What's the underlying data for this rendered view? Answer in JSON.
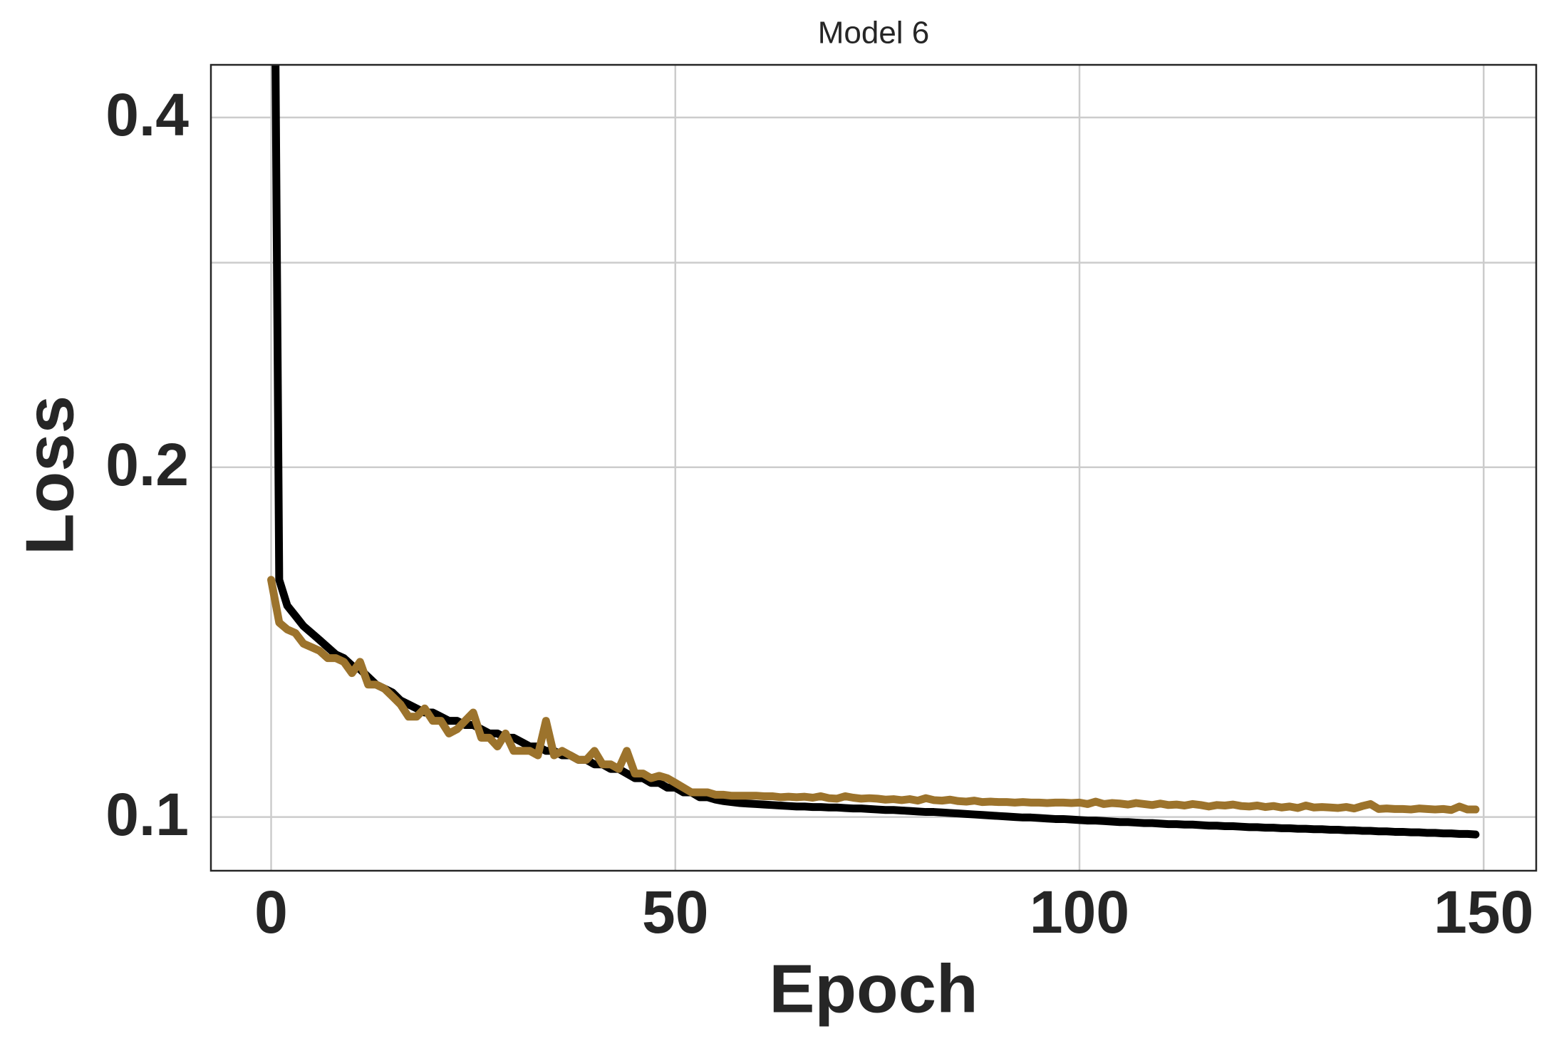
{
  "chart_data": {
    "type": "line",
    "title": "Model 6",
    "xlabel": "Epoch",
    "ylabel": "Loss",
    "yscale": "log",
    "grid": true,
    "xlim": [
      -7.45,
      156.5
    ],
    "ylim": [
      0.0899,
      0.444
    ],
    "xticks": [
      0,
      50,
      100,
      150
    ],
    "yticks": [
      0.1,
      0.2,
      0.4
    ],
    "yminorticks": [
      0.3
    ],
    "x": [
      0,
      1,
      2,
      3,
      4,
      5,
      6,
      7,
      8,
      9,
      10,
      11,
      12,
      13,
      14,
      15,
      16,
      17,
      18,
      19,
      20,
      21,
      22,
      23,
      24,
      25,
      26,
      27,
      28,
      29,
      30,
      31,
      32,
      33,
      34,
      35,
      36,
      37,
      38,
      39,
      40,
      41,
      42,
      43,
      44,
      45,
      46,
      47,
      48,
      49,
      50,
      51,
      52,
      53,
      54,
      55,
      56,
      57,
      58,
      59,
      60,
      61,
      62,
      63,
      64,
      65,
      66,
      67,
      68,
      69,
      70,
      71,
      72,
      73,
      74,
      75,
      76,
      77,
      78,
      79,
      80,
      81,
      82,
      83,
      84,
      85,
      86,
      87,
      88,
      89,
      90,
      91,
      92,
      93,
      94,
      95,
      96,
      97,
      98,
      99,
      100,
      101,
      102,
      103,
      104,
      105,
      106,
      107,
      108,
      109,
      110,
      111,
      112,
      113,
      114,
      115,
      116,
      117,
      118,
      119,
      120,
      121,
      122,
      123,
      124,
      125,
      126,
      127,
      128,
      129,
      130,
      131,
      132,
      133,
      134,
      135,
      136,
      137,
      138,
      139,
      140,
      141,
      142,
      143,
      144,
      145,
      146,
      147,
      148,
      149
    ],
    "series": [
      {
        "color": "#000000",
        "values": [
          1.5,
          0.16,
          0.152,
          0.149,
          0.146,
          0.144,
          0.142,
          0.14,
          0.138,
          0.137,
          0.135,
          0.134,
          0.132,
          0.13,
          0.129,
          0.128,
          0.126,
          0.125,
          0.124,
          0.123,
          0.123,
          0.122,
          0.121,
          0.121,
          0.12,
          0.12,
          0.119,
          0.118,
          0.118,
          0.117,
          0.117,
          0.116,
          0.115,
          0.115,
          0.114,
          0.114,
          0.113,
          0.113,
          0.112,
          0.112,
          0.111,
          0.111,
          0.11,
          0.11,
          0.109,
          0.108,
          0.108,
          0.107,
          0.107,
          0.106,
          0.106,
          0.105,
          0.105,
          0.104,
          0.104,
          0.1035,
          0.1032,
          0.103,
          0.1028,
          0.1027,
          0.1026,
          0.1025,
          0.1024,
          0.1023,
          0.1022,
          0.1021,
          0.1021,
          0.102,
          0.102,
          0.1019,
          0.1019,
          0.1018,
          0.1017,
          0.1017,
          0.1016,
          0.1015,
          0.1014,
          0.1014,
          0.1013,
          0.1012,
          0.1011,
          0.101,
          0.101,
          0.1009,
          0.1008,
          0.1007,
          0.1006,
          0.1005,
          0.1004,
          0.1003,
          0.1002,
          0.1001,
          0.1,
          0.0999,
          0.0999,
          0.0998,
          0.0997,
          0.0996,
          0.0996,
          0.0995,
          0.0994,
          0.0993,
          0.0993,
          0.0992,
          0.0991,
          0.099,
          0.099,
          0.0989,
          0.0988,
          0.0988,
          0.0987,
          0.0986,
          0.0986,
          0.0985,
          0.0985,
          0.0984,
          0.0983,
          0.0983,
          0.0982,
          0.0982,
          0.0981,
          0.098,
          0.098,
          0.0979,
          0.0979,
          0.0978,
          0.0978,
          0.0977,
          0.0977,
          0.0976,
          0.0976,
          0.0975,
          0.0975,
          0.0974,
          0.0974,
          0.0973,
          0.0973,
          0.0972,
          0.0972,
          0.0971,
          0.0971,
          0.097,
          0.097,
          0.0969,
          0.0969,
          0.0968,
          0.0968,
          0.0967,
          0.0967,
          0.0966
        ]
      },
      {
        "color": "#9c732c",
        "values": [
          0.16,
          0.147,
          0.145,
          0.144,
          0.141,
          0.14,
          0.139,
          0.137,
          0.137,
          0.136,
          0.133,
          0.136,
          0.13,
          0.13,
          0.129,
          0.127,
          0.125,
          0.122,
          0.122,
          0.124,
          0.121,
          0.121,
          0.118,
          0.119,
          0.121,
          0.123,
          0.117,
          0.117,
          0.115,
          0.118,
          0.114,
          0.114,
          0.114,
          0.113,
          0.121,
          0.113,
          0.114,
          0.113,
          0.112,
          0.112,
          0.114,
          0.111,
          0.111,
          0.11,
          0.114,
          0.109,
          0.109,
          0.108,
          0.1085,
          0.108,
          0.107,
          0.106,
          0.105,
          0.105,
          0.105,
          0.1045,
          0.1045,
          0.1043,
          0.1043,
          0.1043,
          0.1043,
          0.1042,
          0.1042,
          0.104,
          0.1041,
          0.104,
          0.1041,
          0.1039,
          0.1042,
          0.1038,
          0.1037,
          0.1042,
          0.1039,
          0.1037,
          0.1038,
          0.1037,
          0.1035,
          0.1036,
          0.1034,
          0.1036,
          0.1033,
          0.1038,
          0.1034,
          0.1033,
          0.1035,
          0.1032,
          0.1031,
          0.1033,
          0.103,
          0.1031,
          0.103,
          0.103,
          0.1029,
          0.103,
          0.1029,
          0.1029,
          0.1028,
          0.1029,
          0.1029,
          0.1028,
          0.1029,
          0.1026,
          0.1031,
          0.1026,
          0.1028,
          0.1027,
          0.1025,
          0.1028,
          0.1026,
          0.1024,
          0.1027,
          0.1024,
          0.1025,
          0.1023,
          0.1026,
          0.1024,
          0.1021,
          0.1024,
          0.1023,
          0.1025,
          0.1022,
          0.1021,
          0.1023,
          0.102,
          0.1022,
          0.1019,
          0.1021,
          0.1018,
          0.1023,
          0.1019,
          0.102,
          0.1019,
          0.1018,
          0.102,
          0.1017,
          0.1022,
          0.1026,
          0.1016,
          0.1017,
          0.1016,
          0.1016,
          0.1015,
          0.1017,
          0.1016,
          0.1015,
          0.1016,
          0.1014,
          0.1021,
          0.1015,
          0.1015
        ]
      }
    ]
  }
}
